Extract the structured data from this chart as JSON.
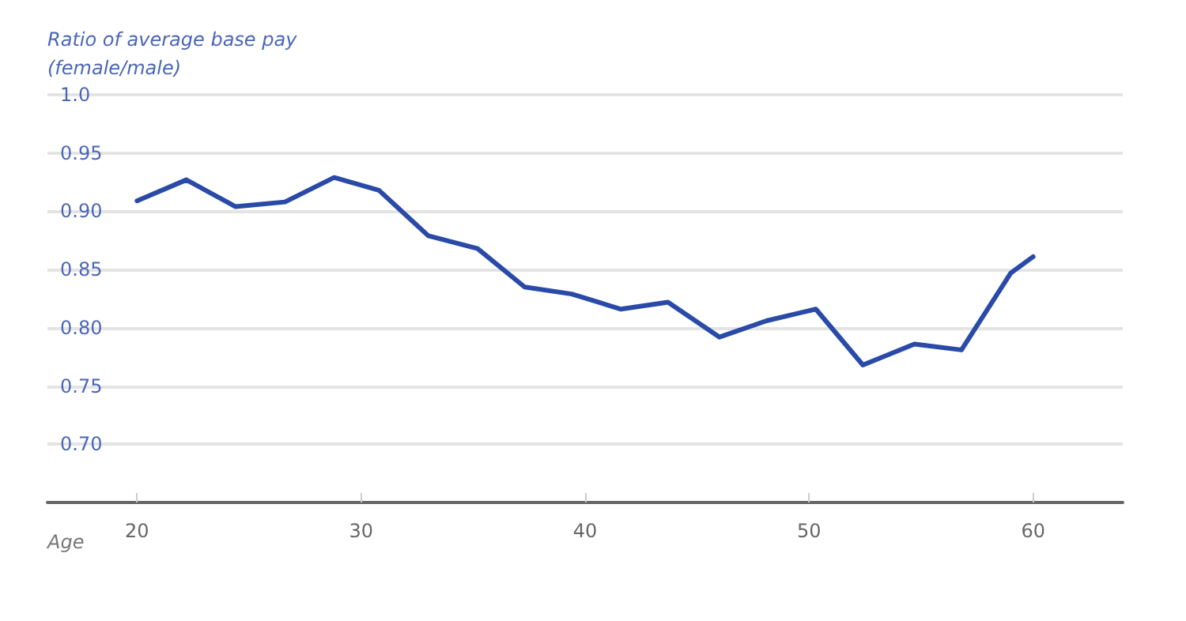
{
  "chart_data": {
    "type": "line",
    "ylabel": "Ratio of average base pay\n(female/male)",
    "xlabel": "Age",
    "x": [
      20,
      22.2,
      24.4,
      26.6,
      28.8,
      30.8,
      33,
      35.2,
      37.3,
      39.4,
      41.6,
      43.7,
      46,
      48.1,
      50.3,
      52.4,
      54.7,
      56.8,
      59,
      60
    ],
    "series": [
      {
        "color": "#2a4aa8",
        "values": [
          0.909,
          0.927,
          0.904,
          0.908,
          0.929,
          0.918,
          0.879,
          0.868,
          0.835,
          0.829,
          0.816,
          0.822,
          0.792,
          0.806,
          0.816,
          0.768,
          0.786,
          0.781,
          0.847,
          0.861
        ]
      }
    ],
    "xlim": [
      16,
      64
    ],
    "xticks": [
      20,
      30,
      40,
      50,
      60
    ],
    "ylim": [
      0.65,
      1.0
    ],
    "yticks": [
      {
        "value": 0.7,
        "label": "0.70"
      },
      {
        "value": 0.75,
        "label": "0.75"
      },
      {
        "value": 0.8,
        "label": "0.80"
      },
      {
        "value": 0.85,
        "label": "0.85"
      },
      {
        "value": 0.9,
        "label": "0.90"
      },
      {
        "value": 0.95,
        "label": "0.95"
      },
      {
        "value": 1.0,
        "label": "1.0"
      }
    ],
    "grid": "y",
    "marker": "none",
    "line_style": "solid"
  }
}
